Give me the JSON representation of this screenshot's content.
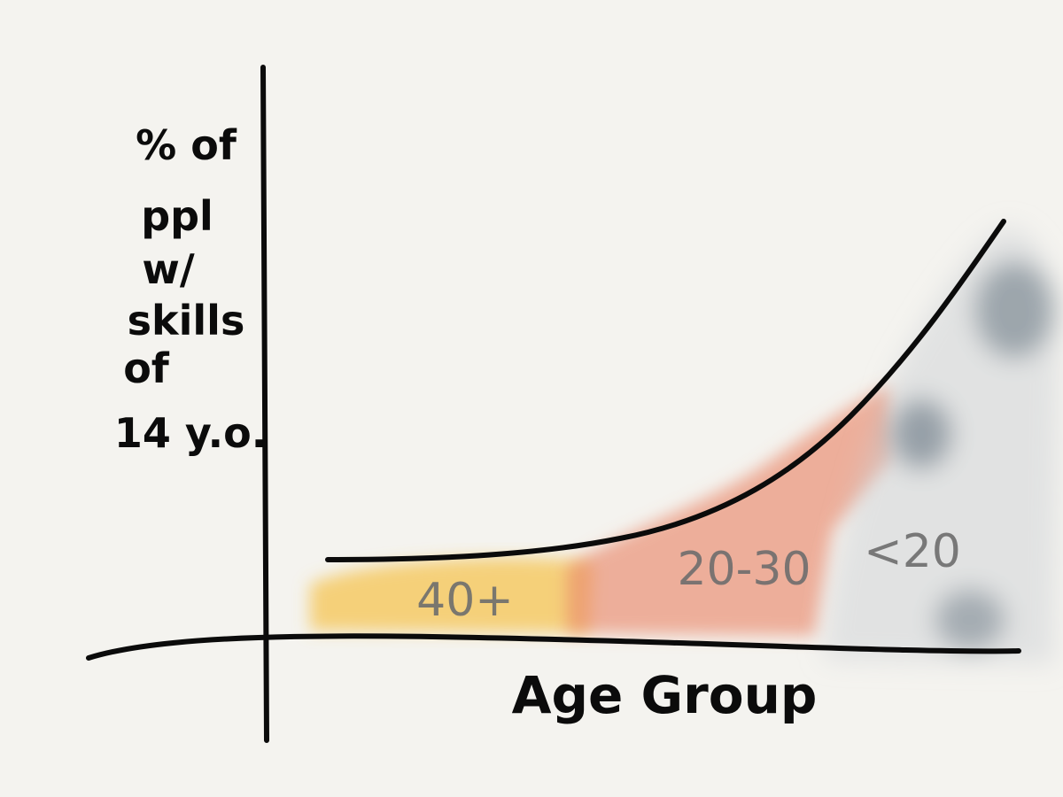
{
  "chart_data": {
    "type": "area",
    "xlabel": "Age Group",
    "ylabel_lines": [
      "% of",
      "ppl",
      "w/",
      "skills",
      "of",
      "14 y.o."
    ],
    "categories": [
      "40+",
      "20-30",
      "<20"
    ],
    "trend": "increasing",
    "colors": {
      "40+": "#f5c451",
      "20-30": "#e98a6c",
      "<20": "#5a6a78",
      "curve": "#0b0b0b",
      "axis": "#0b0b0b"
    }
  }
}
